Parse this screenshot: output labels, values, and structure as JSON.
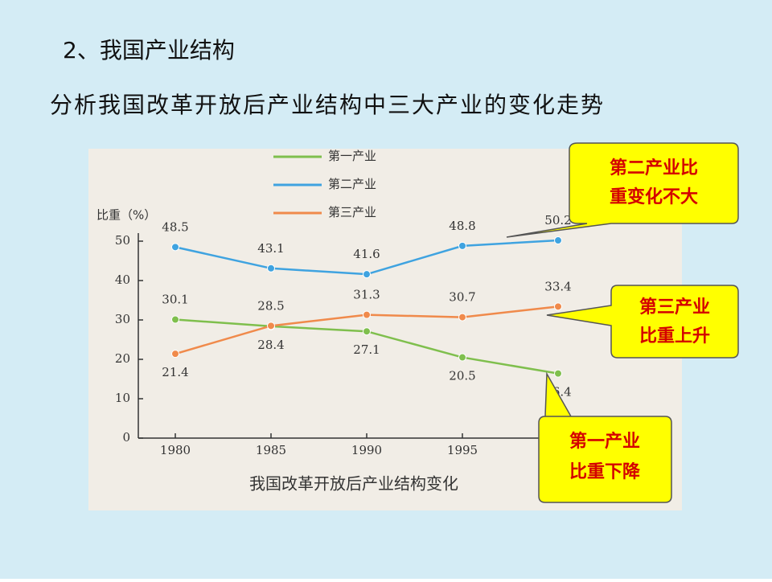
{
  "heading": "2、我国产业结构",
  "subheading": "分析我国改革开放后产业结构中三大产业的变化走势",
  "chart_data": {
    "type": "line",
    "title": "我国改革开放后产业结构变化",
    "y_label": "比重（%）",
    "categories": [
      "1980",
      "1985",
      "1990",
      "1995",
      null
    ],
    "series": [
      {
        "name": "第一产业",
        "color": "#7fbf4d",
        "values": [
          30.1,
          28.4,
          27.1,
          20.5,
          16.4
        ]
      },
      {
        "name": "第二产业",
        "color": "#3fa3e0",
        "values": [
          48.5,
          43.1,
          41.6,
          48.8,
          50.2
        ]
      },
      {
        "name": "第三产业",
        "color": "#f08a4b",
        "values": [
          21.4,
          28.5,
          31.3,
          30.7,
          33.4
        ]
      }
    ],
    "ylim": [
      0,
      50
    ],
    "yticks": [
      0,
      10,
      20,
      30,
      40,
      50
    ],
    "annotations": [
      {
        "lines": [
          "第二产业比",
          "重变化不大"
        ]
      },
      {
        "lines": [
          "第三产业",
          "比重上升"
        ]
      },
      {
        "lines": [
          "第一产业",
          "比重下降"
        ]
      }
    ]
  }
}
